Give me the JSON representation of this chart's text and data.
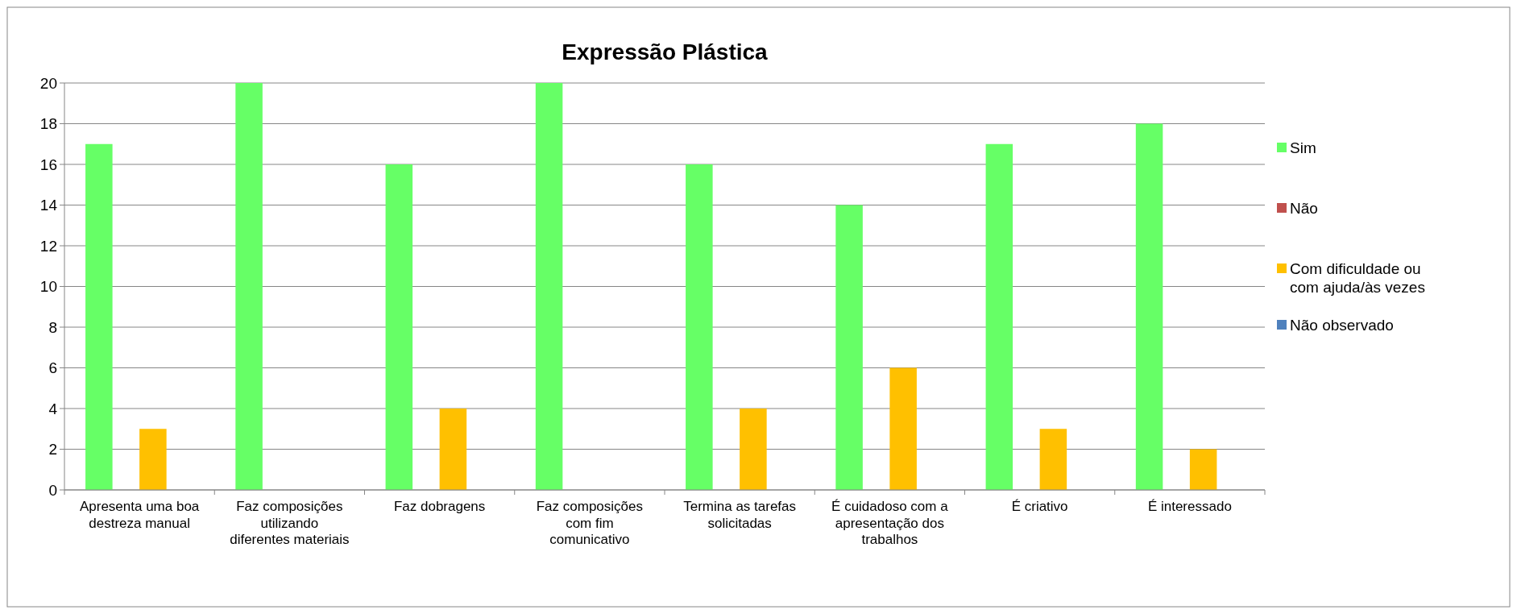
{
  "chart_data": {
    "type": "bar",
    "title": "Expressão Plástica",
    "categories": [
      "Apresenta uma boa destreza manual",
      "Faz composições utilizando diferentes materiais",
      "Faz dobragens",
      "Faz composições com fim comunicativo",
      "Termina as tarefas solicitadas",
      "É cuidadoso com a apresentação dos trabalhos",
      "É criativo",
      "É interessado"
    ],
    "series": [
      {
        "name": "Sim",
        "color": "#66ff66",
        "values": [
          17,
          20,
          16,
          20,
          16,
          14,
          17,
          18
        ]
      },
      {
        "name": "Não",
        "color": "#c0504d",
        "values": [
          0,
          0,
          0,
          0,
          0,
          0,
          0,
          0
        ]
      },
      {
        "name": "Com dificuldade ou com ajuda/às vezes",
        "color": "#ffc000",
        "values": [
          3,
          0,
          4,
          0,
          4,
          6,
          3,
          2
        ]
      },
      {
        "name": "Não observado",
        "color": "#4f81bd",
        "values": [
          0,
          0,
          0,
          0,
          0,
          0,
          0,
          0
        ]
      }
    ],
    "ylim": [
      0,
      20
    ],
    "yticks": [
      0,
      2,
      4,
      6,
      8,
      10,
      12,
      14,
      16,
      18,
      20
    ],
    "grid": "y",
    "legend": "right"
  }
}
